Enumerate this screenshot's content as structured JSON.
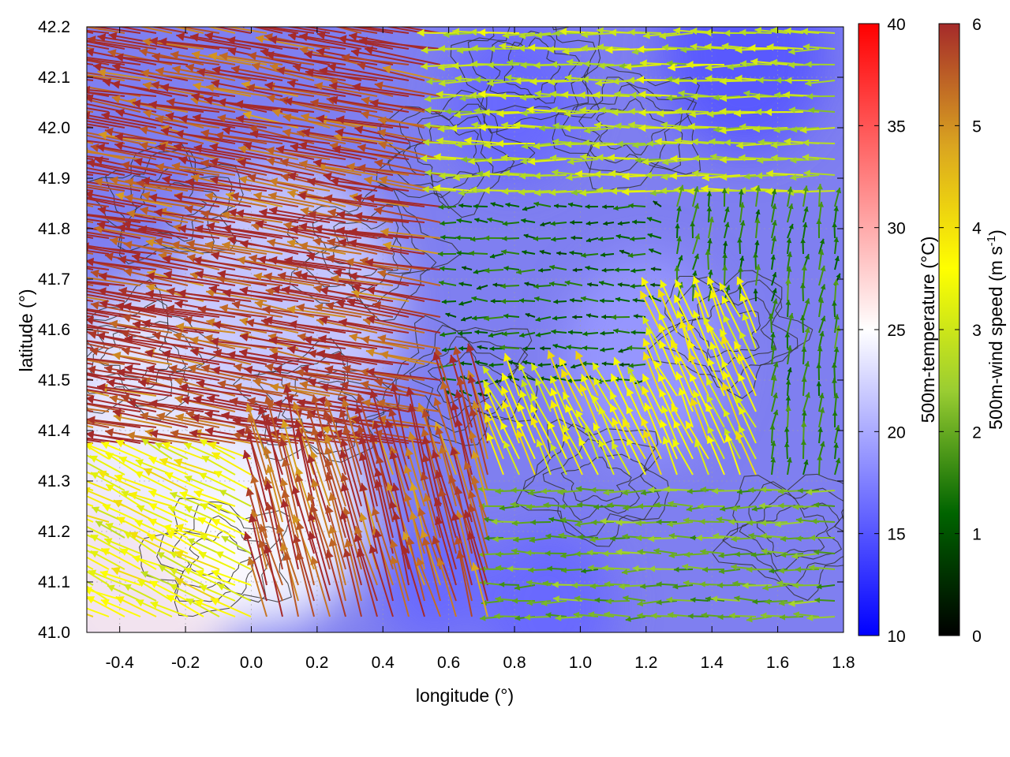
{
  "chart_data": {
    "type": "heatmap",
    "subtype": "filled map with wind vector field and contour lines",
    "title": "",
    "xlabel": "longitude (°)",
    "ylabel": "latitude (°)",
    "xlim": [
      -0.5,
      1.8
    ],
    "ylim": [
      41.0,
      42.2
    ],
    "x_ticks": [
      -0.4,
      -0.2,
      0.0,
      0.2,
      0.4,
      0.6,
      0.8,
      1.0,
      1.2,
      1.4,
      1.6,
      1.8
    ],
    "x_tick_labels": [
      "-0.4",
      "-0.2",
      "0.0",
      "0.2",
      "0.4",
      "0.6",
      "0.8",
      "1.0",
      "1.2",
      "1.4",
      "1.6",
      "1.8"
    ],
    "y_ticks": [
      41.0,
      41.1,
      41.2,
      41.3,
      41.4,
      41.5,
      41.6,
      41.7,
      41.8,
      41.9,
      42.0,
      42.1,
      42.2
    ],
    "y_tick_labels": [
      "41.0",
      "41.1",
      "41.2",
      "41.3",
      "41.4",
      "41.5",
      "41.6",
      "41.7",
      "41.8",
      "41.9",
      "42.0",
      "42.1",
      "42.2"
    ],
    "grid": true,
    "temperature_colorbar": {
      "label": "500m-temperature (°C)",
      "range": [
        10,
        40
      ],
      "ticks": [
        10,
        15,
        20,
        25,
        30,
        35,
        40
      ],
      "tick_labels": [
        "10",
        "15",
        "20",
        "25",
        "30",
        "35",
        "40"
      ],
      "colors": [
        "#0000ff",
        "#ffffff",
        "#ff0000"
      ]
    },
    "wind_colorbar": {
      "label_prefix": "500m-wind speed (m s",
      "label_superscript": "-1",
      "label_suffix": ")",
      "range": [
        0,
        6
      ],
      "ticks": [
        0,
        1,
        2,
        3,
        4,
        5,
        6
      ],
      "tick_labels": [
        "0",
        "1",
        "2",
        "3",
        "4",
        "5",
        "6"
      ],
      "colors": [
        "#000000",
        "#006400",
        "#9acd32",
        "#ffff00",
        "#daa520",
        "#a52a2a"
      ]
    },
    "temperature_regions": [
      {
        "lon": -0.35,
        "lat": 41.15,
        "value": 26,
        "radius": 0.35
      },
      {
        "lon": 0.05,
        "lat": 41.25,
        "value": 25,
        "radius": 0.3
      },
      {
        "lon": -0.3,
        "lat": 41.45,
        "value": 24,
        "radius": 0.3
      },
      {
        "lon": 0.1,
        "lat": 41.65,
        "value": 22,
        "radius": 0.35
      },
      {
        "lon": 0.55,
        "lat": 41.1,
        "value": 16,
        "radius": 0.15
      },
      {
        "lon": 0.9,
        "lat": 41.05,
        "value": 16,
        "radius": 0.2
      },
      {
        "lon": 1.5,
        "lat": 42.15,
        "value": 15,
        "radius": 0.25
      },
      {
        "lon": 0.8,
        "lat": 42.05,
        "value": 16,
        "radius": 0.2
      },
      {
        "lon": 1.2,
        "lat": 41.55,
        "value": 19,
        "radius": 0.25
      }
    ],
    "wind_regions": [
      {
        "lon_min": -0.5,
        "lon_max": 0.6,
        "lat_min": 41.35,
        "lat_max": 42.2,
        "u": -5.8,
        "v": 1.0
      },
      {
        "lon_min": 0.0,
        "lon_max": 0.75,
        "lat_min": 41.0,
        "lat_max": 41.45,
        "u": -1.5,
        "v": 5.5
      },
      {
        "lon_min": -0.5,
        "lon_max": 0.0,
        "lat_min": 41.0,
        "lat_max": 41.4,
        "u": -3.2,
        "v": 1.5
      },
      {
        "lon_min": 0.6,
        "lon_max": 1.8,
        "lat_min": 41.85,
        "lat_max": 42.2,
        "u": -2.8,
        "v": 0.0
      },
      {
        "lon_min": 0.6,
        "lon_max": 1.2,
        "lat_min": 41.5,
        "lat_max": 41.85,
        "u": -1.2,
        "v": 0.0
      },
      {
        "lon_min": 0.75,
        "lon_max": 1.55,
        "lat_min": 41.3,
        "lat_max": 41.65,
        "u": -1.5,
        "v": 3.2
      },
      {
        "lon_min": 1.25,
        "lon_max": 1.8,
        "lat_min": 41.3,
        "lat_max": 41.85,
        "u": 0.2,
        "v": 1.5
      },
      {
        "lon_min": 0.75,
        "lon_max": 1.8,
        "lat_min": 41.0,
        "lat_max": 41.3,
        "u": -2.0,
        "v": 0.0
      }
    ]
  }
}
